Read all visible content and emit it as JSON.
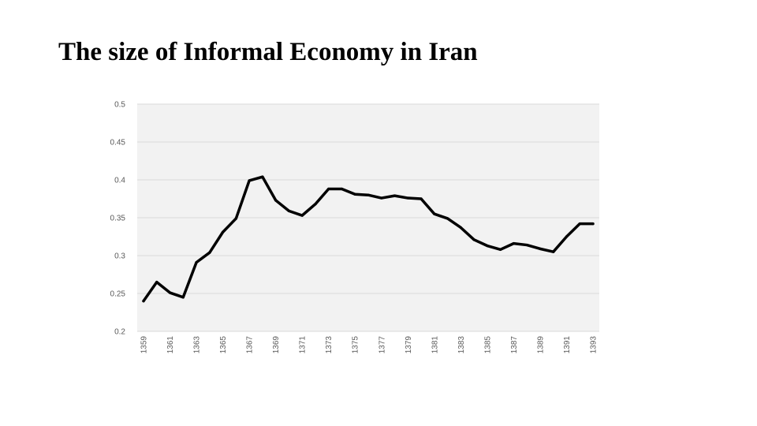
{
  "title": "The size of Informal Economy in Iran",
  "chart_data": {
    "type": "line",
    "title": "The size of Informal Economy in Iran",
    "xlabel": "",
    "ylabel": "",
    "ylim": [
      0.2,
      0.5
    ],
    "yticks": [
      "0.2",
      "0.25",
      "0.3",
      "0.35",
      "0.4",
      "0.45",
      "0.5"
    ],
    "grid": true,
    "legend": "none",
    "x": [
      1359,
      1360,
      1361,
      1362,
      1363,
      1364,
      1365,
      1366,
      1367,
      1368,
      1369,
      1370,
      1371,
      1372,
      1373,
      1374,
      1375,
      1376,
      1377,
      1378,
      1379,
      1380,
      1381,
      1382,
      1383,
      1384,
      1385,
      1386,
      1387,
      1388,
      1389,
      1390,
      1391,
      1392,
      1393
    ],
    "xtick_labels": [
      "1359",
      "1361",
      "1363",
      "1365",
      "1367",
      "1369",
      "1371",
      "1373",
      "1375",
      "1377",
      "1379",
      "1381",
      "1383",
      "1385",
      "1387",
      "1389",
      "1391",
      "1393"
    ],
    "series": [
      {
        "values": [
          0.24,
          0.265,
          0.251,
          0.245,
          0.291,
          0.304,
          0.331,
          0.349,
          0.399,
          0.404,
          0.373,
          0.359,
          0.353,
          0.368,
          0.388,
          0.388,
          0.381,
          0.38,
          0.376,
          0.379,
          0.376,
          0.375,
          0.355,
          0.349,
          0.337,
          0.321,
          0.313,
          0.308,
          0.316,
          0.314,
          0.309,
          0.305,
          0.325,
          0.342,
          0.342
        ],
        "color": "#000000"
      }
    ],
    "colors": {
      "plot_bg": "#f2f2f2",
      "grid": "#d9d9d9",
      "line": "#000000",
      "tick_text": "#595959"
    }
  }
}
